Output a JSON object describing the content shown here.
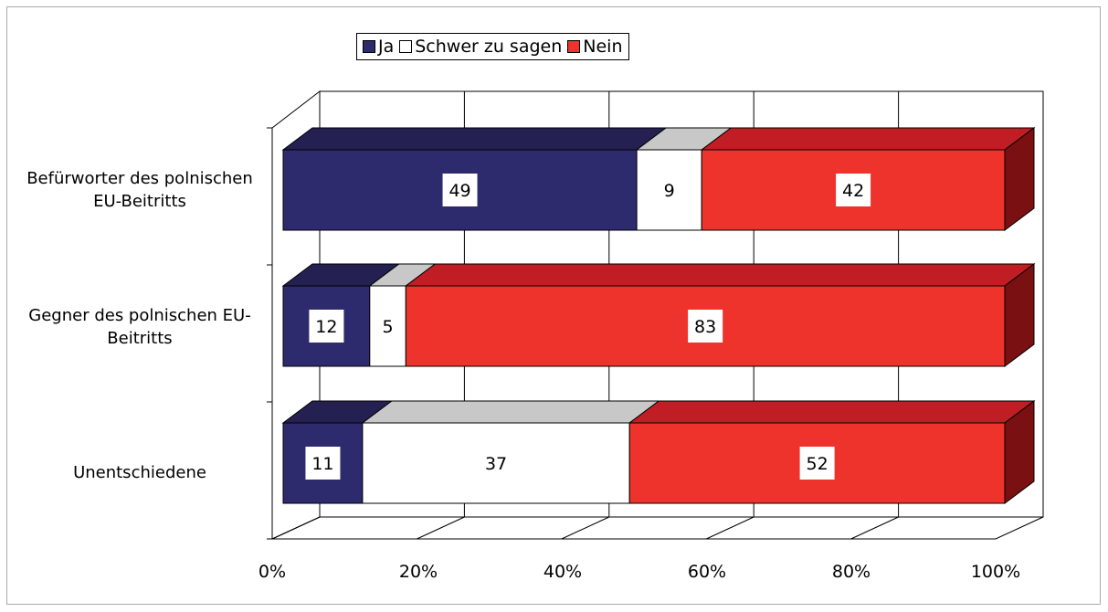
{
  "chart_data": {
    "type": "bar",
    "stacked": true,
    "horizontal": true,
    "percent": true,
    "three_d": true,
    "categories": [
      "Befürworter des polnischen EU-Beitritts",
      "Gegner des polnischen EU-Beitritts",
      "Unentschiedene"
    ],
    "category_label_lines": [
      [
        "Befürworter des polnischen",
        "EU-Beitritts"
      ],
      [
        "Gegner des polnischen EU-",
        "Beitritts"
      ],
      [
        "Unentschiedene"
      ]
    ],
    "series": [
      {
        "name": "Ja",
        "values": [
          49,
          12,
          11
        ],
        "color": "#2e2a6e",
        "top_color": "#242052"
      },
      {
        "name": "Schwer zu sagen",
        "values": [
          9,
          5,
          37
        ],
        "color": "#ffffff",
        "top_color": "#c8c8c8"
      },
      {
        "name": "Nein",
        "values": [
          42,
          83,
          52
        ],
        "color": "#ee332c",
        "top_color": "#c01e24",
        "side_color": "#7a1012"
      }
    ],
    "x_ticks": [
      "0%",
      "20%",
      "40%",
      "60%",
      "80%",
      "100%"
    ],
    "xlim": [
      0,
      100
    ],
    "legend_position": "top",
    "grid": true
  }
}
